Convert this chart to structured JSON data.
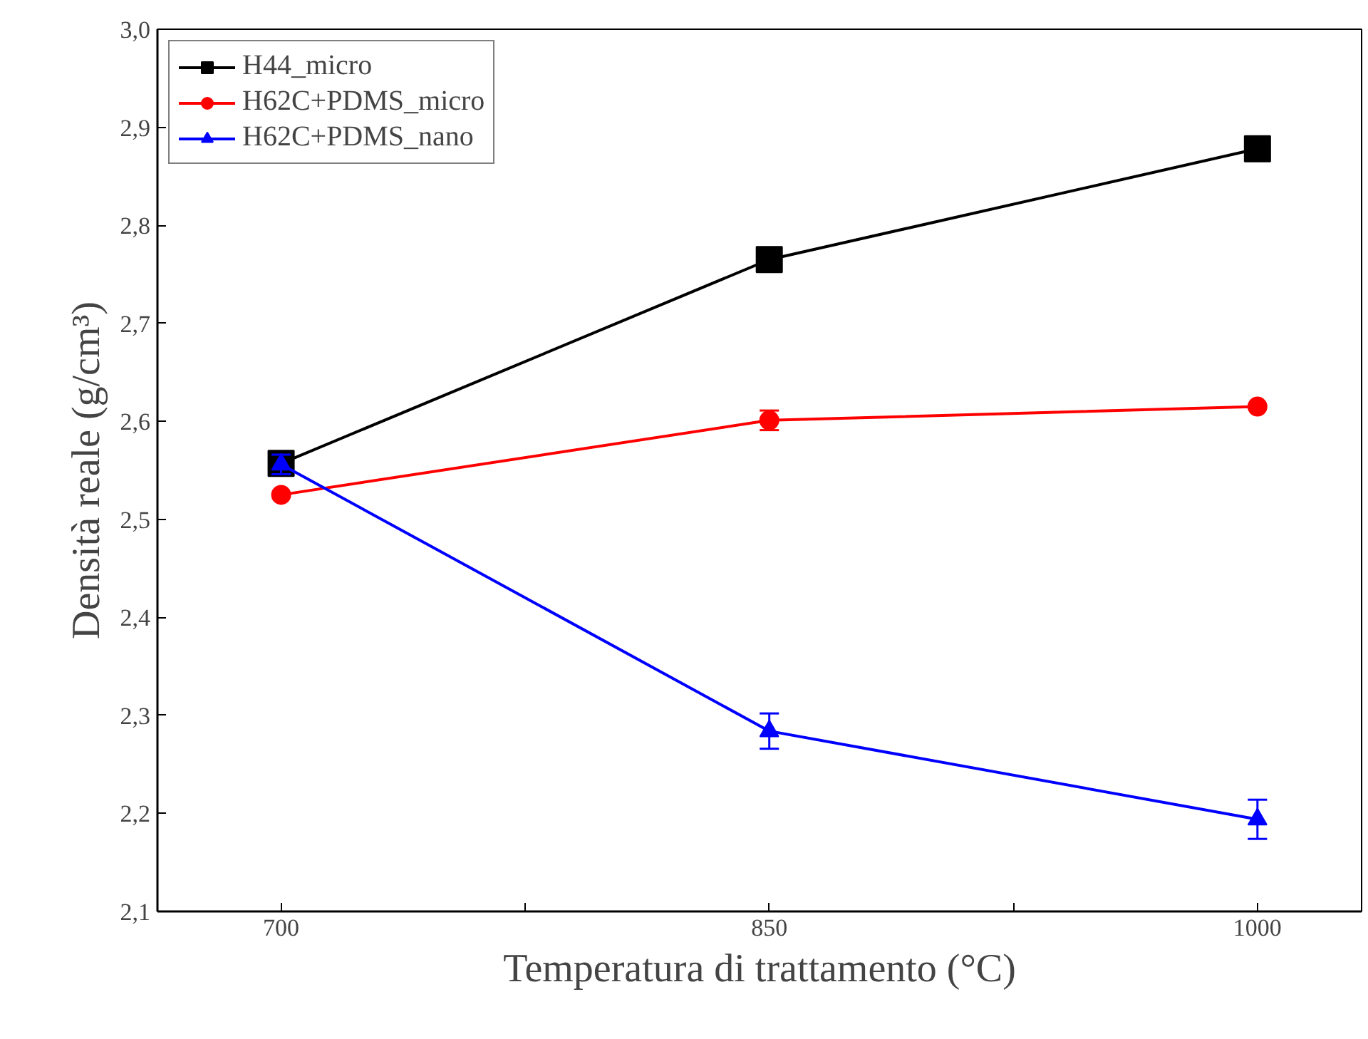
{
  "chart_data": {
    "type": "line",
    "xlabel": "Temperatura di trattamento (°C)",
    "ylabel": "Densità reale (g/cm³)",
    "x": [
      700,
      850,
      1000
    ],
    "xlim": [
      662,
      1032
    ],
    "ylim": [
      2.1,
      3.0
    ],
    "xticks": [
      700,
      {
        "value": 775,
        "label": null
      },
      850,
      {
        "value": 925,
        "label": null
      },
      1000
    ],
    "yticks": [
      {
        "value": 2.1,
        "label": "2,1"
      },
      {
        "value": 2.2,
        "label": "2,2"
      },
      {
        "value": 2.3,
        "label": "2,3"
      },
      {
        "value": 2.4,
        "label": "2,4"
      },
      {
        "value": 2.5,
        "label": "2,5"
      },
      {
        "value": 2.6,
        "label": "2,6"
      },
      {
        "value": 2.7,
        "label": "2,7"
      },
      {
        "value": 2.8,
        "label": "2,8"
      },
      {
        "value": 2.9,
        "label": "2,9"
      },
      {
        "value": 3.0,
        "label": "3,0"
      }
    ],
    "grid": false,
    "legend": "top left",
    "line_style": "solid",
    "series": [
      {
        "name": "H44_micro",
        "color": "#000000",
        "marker": "square",
        "values": [
          2.557,
          2.765,
          2.878
        ]
      },
      {
        "name": "H62C+PDMS_micro",
        "color": "#ff0000",
        "marker": "circle",
        "values": [
          2.525,
          2.601,
          2.615
        ],
        "errors": [
          null,
          0.01,
          null
        ]
      },
      {
        "name": "H62C+PDMS_nano",
        "color": "#0000ff",
        "marker": "triangle",
        "values": [
          2.556,
          2.284,
          2.194
        ],
        "errors": [
          0.01,
          0.018,
          0.02
        ]
      }
    ]
  }
}
